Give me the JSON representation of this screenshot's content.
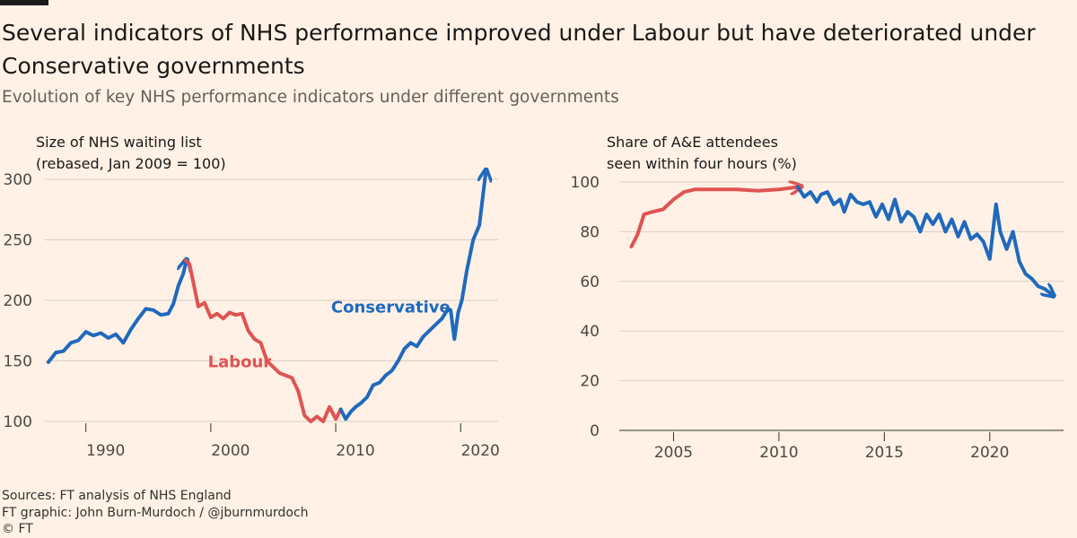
{
  "header": {
    "title": "Several indicators of NHS performance improved under Labour but have deteriorated under Conservative governments",
    "subtitle": "Evolution of key NHS performance indicators under different governments"
  },
  "footer": {
    "source": "Sources: FT analysis of NHS England",
    "credit": "FT graphic: John Burn-Murdoch / @jburnmurdoch",
    "copyright": "© FT"
  },
  "colors": {
    "conservative": "#1f69bd",
    "labour": "#e05353",
    "grid": "#d9cfc6",
    "axis": "#33302e"
  },
  "chart_data": [
    {
      "type": "line",
      "title_lines": [
        "Size of NHS waiting list",
        "(rebased, Jan 2009 = 100)"
      ],
      "xlim": [
        1986,
        2023
      ],
      "ylim": [
        95,
        310
      ],
      "yticks": [
        100,
        150,
        200,
        250,
        300
      ],
      "xticks": [
        1990,
        2000,
        2010,
        2020
      ],
      "annotations": [
        {
          "text": "Labour",
          "series": "Labour",
          "x": 2002.3,
          "y": 145
        },
        {
          "text": "Conservative",
          "series": "Conservative",
          "x": 2014.4,
          "y": 190
        }
      ],
      "series": [
        {
          "name": "Conservative",
          "x": [
            1987.0,
            1987.6,
            1988.2,
            1988.8,
            1989.4,
            1990.0,
            1990.6,
            1991.2,
            1991.8,
            1992.4,
            1993.0,
            1993.6,
            1994.2,
            1994.8,
            1995.4,
            1996.0,
            1996.6,
            1997.0,
            1997.4,
            1997.8,
            1998.0
          ],
          "values": [
            149,
            157,
            158,
            165,
            167,
            174,
            171,
            173,
            169,
            172,
            165,
            176,
            185,
            193,
            192,
            188,
            189,
            197,
            212,
            222,
            231
          ]
        },
        {
          "name": "Labour",
          "x": [
            1998.0,
            1998.3,
            1998.6,
            1999.0,
            1999.5,
            2000.0,
            2000.5,
            2001.0,
            2001.5,
            2002.0,
            2002.5,
            2003.0,
            2003.5,
            2004.0,
            2004.5,
            2005.0,
            2005.5,
            2006.0,
            2006.5,
            2007.0,
            2007.5,
            2008.0,
            2008.5,
            2009.0,
            2009.5,
            2010.0,
            2010.4
          ],
          "values": [
            233,
            230,
            215,
            195,
            198,
            186,
            189,
            185,
            190,
            188,
            189,
            175,
            168,
            165,
            150,
            145,
            140,
            138,
            136,
            125,
            105,
            100,
            104,
            100,
            112,
            102,
            110
          ]
        },
        {
          "name": "Conservative",
          "x": [
            2010.4,
            2010.8,
            2011.2,
            2011.6,
            2012.0,
            2012.5,
            2013.0,
            2013.5,
            2014.0,
            2014.5,
            2015.0,
            2015.5,
            2016.0,
            2016.5,
            2017.0,
            2017.5,
            2018.0,
            2018.5,
            2019.0,
            2019.2,
            2019.5,
            2019.8,
            2020.1,
            2020.5,
            2021.0,
            2021.5,
            2022.0
          ],
          "values": [
            110,
            102,
            108,
            112,
            115,
            120,
            130,
            132,
            138,
            142,
            150,
            160,
            165,
            162,
            170,
            175,
            180,
            185,
            193,
            192,
            168,
            190,
            200,
            225,
            250,
            262,
            305
          ]
        }
      ]
    },
    {
      "type": "line",
      "title_lines": [
        "Share of A&E attendees",
        "seen within four hours (%)"
      ],
      "xlim": [
        2002,
        2023.5
      ],
      "ylim": [
        0,
        100
      ],
      "yticks": [
        0,
        20,
        40,
        60,
        80,
        100
      ],
      "xticks": [
        2005,
        2010,
        2015,
        2020
      ],
      "series": [
        {
          "name": "Labour",
          "x": [
            2003.0,
            2003.3,
            2003.6,
            2004.0,
            2004.5,
            2005.0,
            2005.5,
            2006.0,
            2007.0,
            2008.0,
            2009.0,
            2010.0,
            2010.9
          ],
          "values": [
            74,
            79,
            87,
            88,
            89,
            93,
            96,
            97,
            97,
            97,
            96.5,
            97,
            98
          ]
        },
        {
          "name": "Conservative",
          "x": [
            2010.9,
            2011.2,
            2011.5,
            2011.8,
            2012.0,
            2012.3,
            2012.6,
            2012.9,
            2013.1,
            2013.4,
            2013.7,
            2014.0,
            2014.3,
            2014.6,
            2014.9,
            2015.2,
            2015.5,
            2015.8,
            2016.1,
            2016.4,
            2016.7,
            2017.0,
            2017.3,
            2017.6,
            2017.9,
            2018.2,
            2018.5,
            2018.8,
            2019.1,
            2019.4,
            2019.7,
            2020.0,
            2020.3,
            2020.5,
            2020.8,
            2021.1,
            2021.4,
            2021.7,
            2022.0,
            2022.3,
            2022.6,
            2022.9
          ],
          "values": [
            98,
            94,
            96,
            92,
            95,
            96,
            91,
            93,
            88,
            95,
            92,
            91,
            92,
            86,
            91,
            85,
            93,
            84,
            88,
            86,
            80,
            87,
            83,
            87,
            80,
            85,
            78,
            84,
            77,
            79,
            76,
            69,
            91,
            80,
            73,
            80,
            68,
            63,
            61,
            58,
            57,
            55
          ]
        }
      ]
    }
  ]
}
